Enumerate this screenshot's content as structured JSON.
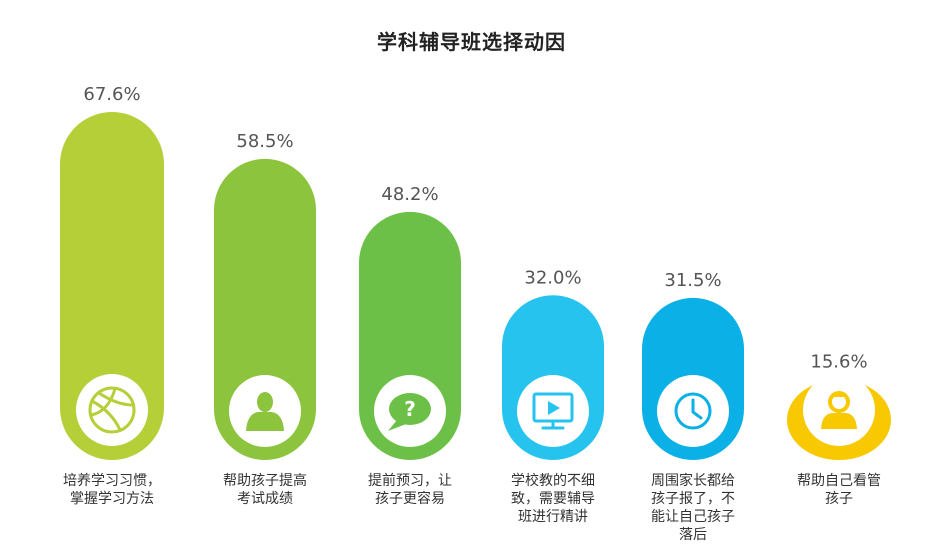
{
  "chart_data": {
    "type": "bar",
    "title": "学科辅导班选择动因",
    "categories": [
      [
        "培养学习习惯，",
        "掌握学习方法"
      ],
      [
        "帮助孩子提高",
        "考试成绩"
      ],
      [
        "提前预习，让",
        "孩子更容易"
      ],
      [
        "学校教的不细",
        "致，需要辅导",
        "班进行精讲"
      ],
      [
        "周围家长都给",
        "孩子报了，不",
        "能让自己孩子",
        "落后"
      ],
      [
        "帮助自己看管",
        "孩子"
      ]
    ],
    "values": [
      67.6,
      58.5,
      48.2,
      32.0,
      31.5,
      15.6
    ],
    "value_labels": [
      "67.6%",
      "58.5%",
      "48.2%",
      "32.0%",
      "31.5%",
      "15.6%"
    ],
    "icons": [
      "basketball-icon",
      "person-icon",
      "question-bubble-icon",
      "monitor-play-icon",
      "clock-icon",
      "user-icon"
    ],
    "colors": [
      "#b4cf37",
      "#8cc43e",
      "#6dc047",
      "#27c3ef",
      "#0ab0e6",
      "#f8c800"
    ],
    "ylim": [
      0,
      67.6
    ],
    "grid": false
  }
}
